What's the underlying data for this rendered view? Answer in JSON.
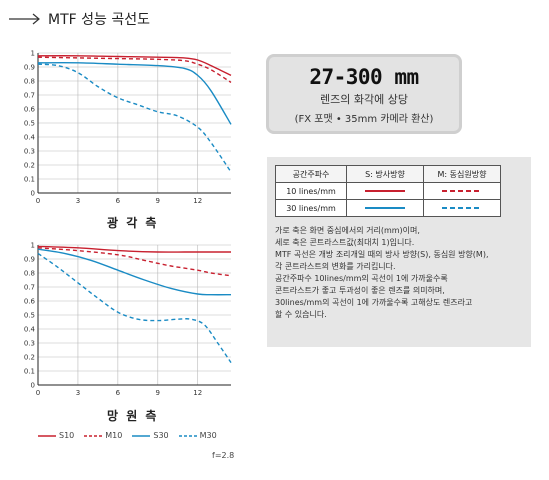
{
  "header": {
    "title": "MTF 성능 곡선도"
  },
  "info": {
    "focal_range": "27-300 mm",
    "line1": "렌즈의 화각에 상당",
    "line2": "(FX 포맷 • 35mm 카메라 환산)"
  },
  "legend_table": {
    "headers": [
      "공간주파수",
      "S: 방사방향",
      "M: 동심원방향"
    ],
    "rows": [
      "10 lines/mm",
      "30 lines/mm"
    ]
  },
  "description": [
    "가로 축은 화면 중심에서의 거리(mm)이며,",
    "세로 축은 콘트라스트값(최대치 1)입니다.",
    "MTF 곡선은 개방 조리개일 때의 방사 방향(S), 동심원 방향(M),",
    "각 콘트라스트의 변화를 가리킵니다.",
    "공간주파수 10lines/mm의 곡선이 1에 가까울수록",
    "콘트라스트가 좋고 투과성이 좋은 렌즈를 의미하며,",
    "30lines/mm의 곡선이 1에 가까울수록 고해상도 렌즈라고",
    "할 수 있습니다."
  ],
  "fnumber": "f=2.8",
  "colors": {
    "red": "#c8202f",
    "blue": "#1a8bc4"
  },
  "chart_data": [
    {
      "type": "line",
      "title": "광 각 측",
      "x_ticks": [
        0,
        3,
        6,
        9,
        12
      ],
      "y_ticks": [
        "0",
        "0.1",
        "0.2",
        "0.3",
        "0.4",
        "0.5",
        "0.6",
        "0.7",
        "0.8",
        "0.9",
        "1"
      ],
      "xlim": [
        0,
        14.5
      ],
      "ylim": [
        0,
        1
      ],
      "grid": true,
      "series": [
        {
          "name": "S10",
          "color": "#c8202f",
          "dash": false,
          "points": [
            [
              0,
              0.98
            ],
            [
              3,
              0.98
            ],
            [
              6,
              0.975
            ],
            [
              9,
              0.97
            ],
            [
              11,
              0.965
            ],
            [
              12,
              0.95
            ],
            [
              13,
              0.91
            ],
            [
              14.5,
              0.84
            ]
          ]
        },
        {
          "name": "M10",
          "color": "#c8202f",
          "dash": true,
          "points": [
            [
              0,
              0.97
            ],
            [
              3,
              0.965
            ],
            [
              6,
              0.96
            ],
            [
              9,
              0.955
            ],
            [
              11,
              0.945
            ],
            [
              12,
              0.92
            ],
            [
              13,
              0.88
            ],
            [
              14.5,
              0.79
            ]
          ]
        },
        {
          "name": "S30",
          "color": "#1a8bc4",
          "dash": false,
          "points": [
            [
              0,
              0.93
            ],
            [
              3,
              0.93
            ],
            [
              6,
              0.92
            ],
            [
              9,
              0.91
            ],
            [
              11,
              0.89
            ],
            [
              12,
              0.84
            ],
            [
              13,
              0.73
            ],
            [
              14.5,
              0.49
            ]
          ]
        },
        {
          "name": "M30",
          "color": "#1a8bc4",
          "dash": true,
          "points": [
            [
              0,
              0.92
            ],
            [
              1.5,
              0.91
            ],
            [
              3,
              0.86
            ],
            [
              4.5,
              0.76
            ],
            [
              6,
              0.68
            ],
            [
              7.5,
              0.63
            ],
            [
              9,
              0.58
            ],
            [
              10.5,
              0.55
            ],
            [
              12,
              0.47
            ],
            [
              13,
              0.36
            ],
            [
              14.5,
              0.15
            ]
          ]
        }
      ]
    },
    {
      "type": "line",
      "title": "망 원 측",
      "x_ticks": [
        0,
        3,
        6,
        9,
        12
      ],
      "y_ticks": [
        "0",
        "0.1",
        "0.2",
        "0.3",
        "0.4",
        "0.5",
        "0.6",
        "0.7",
        "0.8",
        "0.9",
        "1"
      ],
      "xlim": [
        0,
        14.5
      ],
      "ylim": [
        0,
        1
      ],
      "grid": true,
      "series": [
        {
          "name": "S10",
          "color": "#c8202f",
          "dash": false,
          "points": [
            [
              0,
              0.99
            ],
            [
              3,
              0.98
            ],
            [
              6,
              0.96
            ],
            [
              9,
              0.95
            ],
            [
              11,
              0.95
            ],
            [
              12,
              0.95
            ],
            [
              13,
              0.95
            ],
            [
              14.5,
              0.95
            ]
          ]
        },
        {
          "name": "M10",
          "color": "#c8202f",
          "dash": true,
          "points": [
            [
              0,
              0.98
            ],
            [
              3,
              0.96
            ],
            [
              6,
              0.93
            ],
            [
              8,
              0.89
            ],
            [
              10,
              0.85
            ],
            [
              12,
              0.82
            ],
            [
              13,
              0.8
            ],
            [
              14.5,
              0.78
            ]
          ]
        },
        {
          "name": "S30",
          "color": "#1a8bc4",
          "dash": false,
          "points": [
            [
              0,
              0.97
            ],
            [
              2,
              0.94
            ],
            [
              4,
              0.89
            ],
            [
              6,
              0.82
            ],
            [
              8,
              0.75
            ],
            [
              10,
              0.69
            ],
            [
              12,
              0.65
            ],
            [
              13,
              0.645
            ],
            [
              14.5,
              0.645
            ]
          ]
        },
        {
          "name": "M30",
          "color": "#1a8bc4",
          "dash": true,
          "points": [
            [
              0,
              0.94
            ],
            [
              1.5,
              0.84
            ],
            [
              3,
              0.73
            ],
            [
              4.5,
              0.62
            ],
            [
              6,
              0.52
            ],
            [
              7.5,
              0.47
            ],
            [
              9,
              0.46
            ],
            [
              10.5,
              0.47
            ],
            [
              11.5,
              0.47
            ],
            [
              12.5,
              0.43
            ],
            [
              13.5,
              0.3
            ],
            [
              14.5,
              0.16
            ]
          ]
        }
      ]
    }
  ]
}
